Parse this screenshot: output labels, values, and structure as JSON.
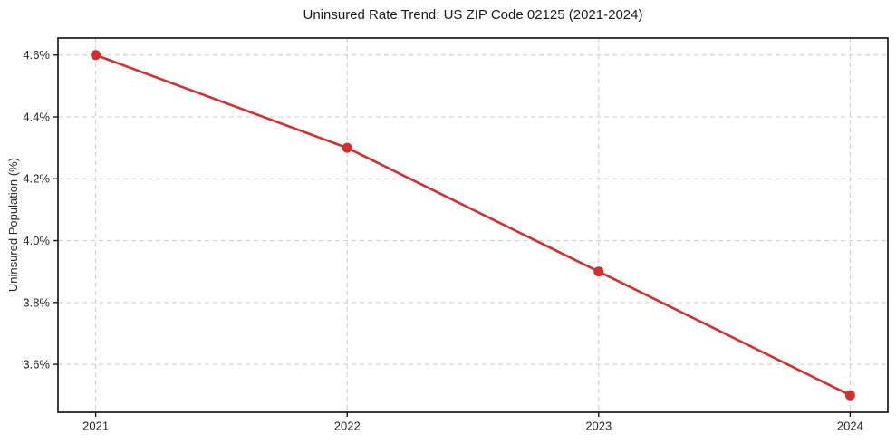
{
  "figure": {
    "title": "Uninsured Rate Trend: US ZIP Code 02125 (2021-2024)"
  },
  "chart_data": {
    "type": "line",
    "title": "Uninsured Rate Trend: US ZIP Code 02125 (2021-2024)",
    "xlabel": "",
    "ylabel": "Uninsured Population (%)",
    "x": [
      2021,
      2022,
      2023,
      2024
    ],
    "values": [
      4.6,
      4.3,
      3.9,
      3.5
    ],
    "xtick_labels": [
      "2021",
      "2022",
      "2023",
      "2024"
    ],
    "ytick_values": [
      3.6,
      3.8,
      4.0,
      4.2,
      4.4,
      4.6
    ],
    "ytick_labels": [
      "3.6%",
      "3.8%",
      "4.0%",
      "4.2%",
      "4.4%",
      "4.6%"
    ],
    "xlim": [
      2020.85,
      2024.15
    ],
    "ylim": [
      3.445,
      4.655
    ],
    "grid": true,
    "grid_style": "dashed",
    "legend": "none",
    "marker": "circle",
    "colors": {
      "line": "#d32f2f",
      "marker": "#d32f2f",
      "grid": "#cccccc",
      "axis": "#1a1a1a",
      "tick_text": "#262626",
      "background": "#ffffff"
    }
  }
}
